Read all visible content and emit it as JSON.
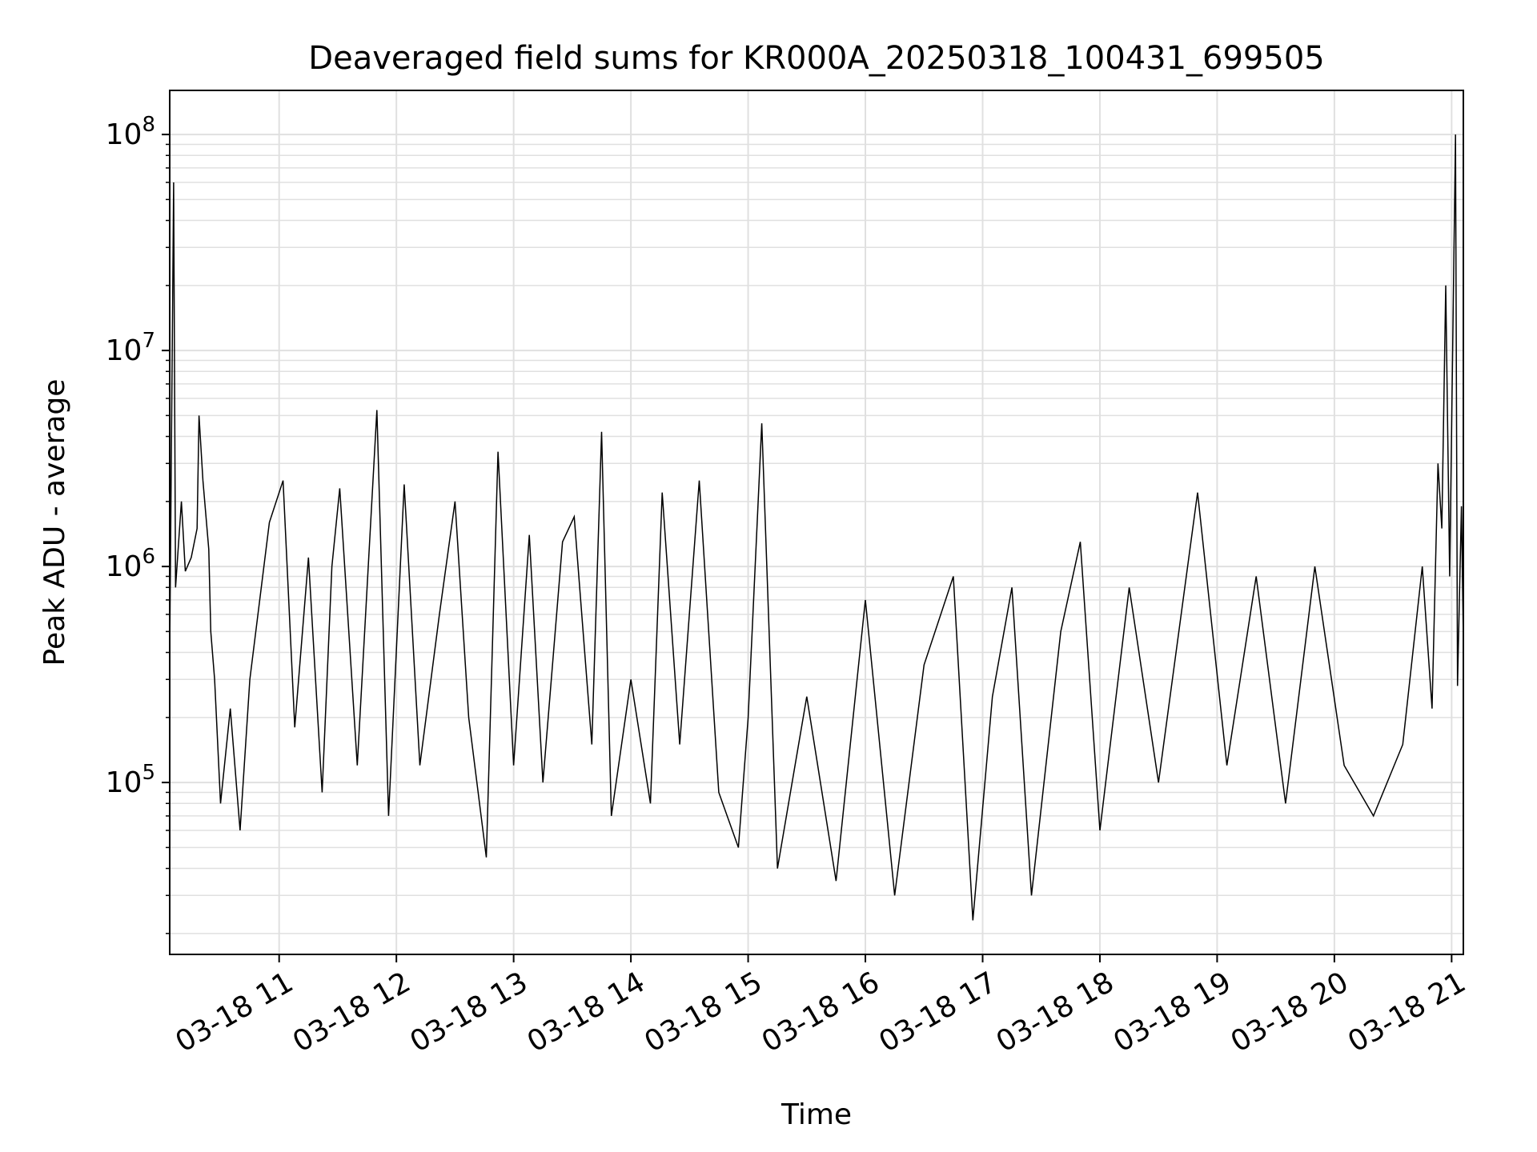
{
  "chart_data": {
    "type": "line",
    "title": "Deaveraged field sums for KR000A_20250318_100431_699505",
    "xlabel": "Time",
    "ylabel": "Peak ADU - average",
    "x_tick_labels": [
      "03-18 11",
      "03-18 12",
      "03-18 13",
      "03-18 14",
      "03-18 15",
      "03-18 16",
      "03-18 17",
      "03-18 18",
      "03-18 19",
      "03-18 20",
      "03-18 21"
    ],
    "y_tick_labels": [
      {
        "base": "10",
        "exp": "5"
      },
      {
        "base": "10",
        "exp": "6"
      },
      {
        "base": "10",
        "exp": "7"
      },
      {
        "base": "10",
        "exp": "8"
      }
    ],
    "x_range": [
      "2025-03-18 10:04",
      "2025-03-18 21:06"
    ],
    "y_range": [
      16000,
      160000000
    ],
    "y_scale": "log",
    "grid": true,
    "series_color": "#000000",
    "grid_color": "#e0e0e0",
    "series": [
      {
        "points": [
          [
            "2025-03-18 10:04",
            400000
          ],
          [
            "2025-03-18 10:06",
            60000000
          ],
          [
            "2025-03-18 10:07",
            800000
          ],
          [
            "2025-03-18 10:10",
            2000000
          ],
          [
            "2025-03-18 10:12",
            950000
          ],
          [
            "2025-03-18 10:15",
            1100000
          ],
          [
            "2025-03-18 10:18",
            1500000
          ],
          [
            "2025-03-18 10:19",
            5000000
          ],
          [
            "2025-03-18 10:21",
            2500000
          ],
          [
            "2025-03-18 10:24",
            1200000
          ],
          [
            "2025-03-18 10:25",
            500000
          ],
          [
            "2025-03-18 10:27",
            300000
          ],
          [
            "2025-03-18 10:30",
            80000
          ],
          [
            "2025-03-18 10:35",
            220000
          ],
          [
            "2025-03-18 10:40",
            60000
          ],
          [
            "2025-03-18 10:45",
            300000
          ],
          [
            "2025-03-18 10:55",
            1600000
          ],
          [
            "2025-03-18 11:02",
            2500000
          ],
          [
            "2025-03-18 11:08",
            180000
          ],
          [
            "2025-03-18 11:15",
            1100000
          ],
          [
            "2025-03-18 11:22",
            90000
          ],
          [
            "2025-03-18 11:27",
            1000000
          ],
          [
            "2025-03-18 11:31",
            2300000
          ],
          [
            "2025-03-18 11:40",
            120000
          ],
          [
            "2025-03-18 11:50",
            5300000
          ],
          [
            "2025-03-18 11:56",
            70000
          ],
          [
            "2025-03-18 12:04",
            2400000
          ],
          [
            "2025-03-18 12:12",
            120000
          ],
          [
            "2025-03-18 12:22",
            600000
          ],
          [
            "2025-03-18 12:30",
            2000000
          ],
          [
            "2025-03-18 12:37",
            200000
          ],
          [
            "2025-03-18 12:46",
            45000
          ],
          [
            "2025-03-18 12:52",
            3400000
          ],
          [
            "2025-03-18 13:00",
            120000
          ],
          [
            "2025-03-18 13:08",
            1400000
          ],
          [
            "2025-03-18 13:15",
            100000
          ],
          [
            "2025-03-18 13:25",
            1300000
          ],
          [
            "2025-03-18 13:31",
            1700000
          ],
          [
            "2025-03-18 13:40",
            150000
          ],
          [
            "2025-03-18 13:45",
            4200000
          ],
          [
            "2025-03-18 13:50",
            70000
          ],
          [
            "2025-03-18 14:00",
            300000
          ],
          [
            "2025-03-18 14:10",
            80000
          ],
          [
            "2025-03-18 14:16",
            2200000
          ],
          [
            "2025-03-18 14:25",
            150000
          ],
          [
            "2025-03-18 14:35",
            2500000
          ],
          [
            "2025-03-18 14:45",
            90000
          ],
          [
            "2025-03-18 14:55",
            50000
          ],
          [
            "2025-03-18 15:00",
            200000
          ],
          [
            "2025-03-18 15:07",
            4600000
          ],
          [
            "2025-03-18 15:15",
            40000
          ],
          [
            "2025-03-18 15:30",
            250000
          ],
          [
            "2025-03-18 15:45",
            35000
          ],
          [
            "2025-03-18 16:00",
            700000
          ],
          [
            "2025-03-18 16:15",
            30000
          ],
          [
            "2025-03-18 16:30",
            350000
          ],
          [
            "2025-03-18 16:45",
            900000
          ],
          [
            "2025-03-18 16:55",
            23000
          ],
          [
            "2025-03-18 17:05",
            250000
          ],
          [
            "2025-03-18 17:15",
            800000
          ],
          [
            "2025-03-18 17:25",
            30000
          ],
          [
            "2025-03-18 17:40",
            500000
          ],
          [
            "2025-03-18 17:50",
            1300000
          ],
          [
            "2025-03-18 18:00",
            60000
          ],
          [
            "2025-03-18 18:15",
            800000
          ],
          [
            "2025-03-18 18:30",
            100000
          ],
          [
            "2025-03-18 18:50",
            2200000
          ],
          [
            "2025-03-18 19:05",
            120000
          ],
          [
            "2025-03-18 19:20",
            900000
          ],
          [
            "2025-03-18 19:35",
            80000
          ],
          [
            "2025-03-18 19:50",
            1000000
          ],
          [
            "2025-03-18 20:05",
            120000
          ],
          [
            "2025-03-18 20:20",
            70000
          ],
          [
            "2025-03-18 20:35",
            150000
          ],
          [
            "2025-03-18 20:45",
            1000000
          ],
          [
            "2025-03-18 20:50",
            220000
          ],
          [
            "2025-03-18 20:53",
            3000000
          ],
          [
            "2025-03-18 20:55",
            1500000
          ],
          [
            "2025-03-18 20:57",
            20000000
          ],
          [
            "2025-03-18 20:59",
            900000
          ],
          [
            "2025-03-18 21:02",
            100000000
          ],
          [
            "2025-03-18 21:03",
            280000
          ],
          [
            "2025-03-18 21:05",
            1900000
          ],
          [
            "2025-03-18 21:06",
            450000
          ]
        ]
      }
    ]
  }
}
